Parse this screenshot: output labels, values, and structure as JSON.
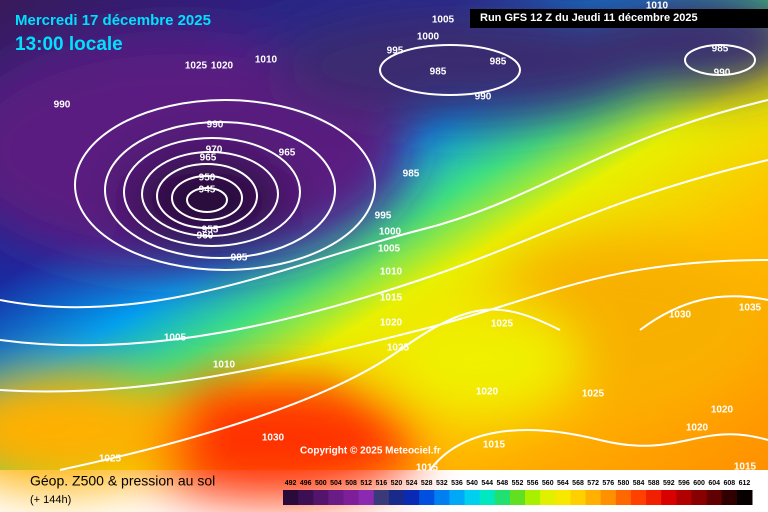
{
  "header": {
    "date": "Mercredi 17 décembre 2025",
    "time": "13:00 locale",
    "run": "Run GFS 12 Z du Jeudi 11 décembre 2025"
  },
  "copyright": "Copyright © 2025 Meteociel.fr",
  "footer": {
    "title": "Géop. Z500 & pression au sol",
    "lead": "(+ 144h)"
  },
  "isobar_labels": [
    "1005",
    "1000",
    "995",
    "985",
    "985",
    "990",
    "1010",
    "985",
    "990",
    "1025",
    "1020",
    "1010",
    "990",
    "990",
    "970",
    "965",
    "965",
    "985",
    "950",
    "945",
    "995",
    "955",
    "960",
    "985",
    "1000",
    "1005",
    "1010",
    "1015",
    "1020",
    "1025",
    "1025",
    "1030",
    "1035",
    "1005",
    "1010",
    "1020",
    "1025",
    "1020",
    "1020",
    "1015",
    "1030",
    "1025",
    "1015",
    "1015"
  ],
  "colorbar": {
    "ticks": [
      492,
      496,
      500,
      504,
      508,
      512,
      516,
      520,
      524,
      528,
      532,
      536,
      540,
      544,
      548,
      552,
      556,
      560,
      564,
      568,
      572,
      576,
      580,
      584,
      588,
      592,
      596,
      600,
      604,
      608,
      612
    ],
    "colors": [
      "#2a0a3a",
      "#3c0f52",
      "#52156b",
      "#6a1c86",
      "#7e1f9a",
      "#8a2ab0",
      "#3a3a7a",
      "#1a2a8a",
      "#0a2ab4",
      "#0050e0",
      "#0080f0",
      "#00a8f8",
      "#00d0f0",
      "#00e8c0",
      "#20e070",
      "#60e020",
      "#a8f000",
      "#e0f000",
      "#f8e800",
      "#ffd000",
      "#ffb000",
      "#ff9000",
      "#ff6800",
      "#ff4000",
      "#f02000",
      "#d80000",
      "#b00000",
      "#880000",
      "#600000",
      "#300000",
      "#080000"
    ]
  }
}
